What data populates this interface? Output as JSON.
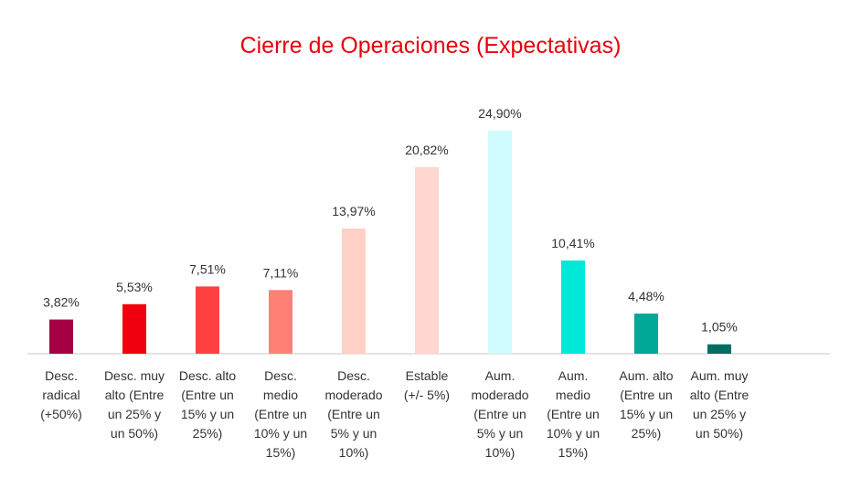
{
  "chart_data": {
    "type": "bar",
    "title": "Cierre de Operaciones (Expectativas)",
    "categories": [
      [
        "Desc.",
        "radical",
        "(+50%)"
      ],
      [
        "Desc. muy",
        "alto (Entre",
        "un 25% y",
        "un 50%)"
      ],
      [
        "Desc. alto",
        "(Entre un",
        "15% y un",
        "25%)"
      ],
      [
        "Desc.",
        "medio",
        "(Entre un",
        "10% y un",
        "15%)"
      ],
      [
        "Desc.",
        "moderado",
        "(Entre un",
        "5% y un",
        "10%)"
      ],
      [
        "Estable",
        "(+/- 5%)"
      ],
      [
        "Aum.",
        "moderado",
        "(Entre un",
        "5% y un",
        "10%)"
      ],
      [
        "Aum.",
        "medio",
        "(Entre un",
        "10% y un",
        "15%)"
      ],
      [
        "Aum. alto",
        "(Entre un",
        "15% y un",
        "25%)"
      ],
      [
        "Aum. muy",
        "alto (Entre",
        "un 25% y",
        "un 50%)"
      ]
    ],
    "values": [
      3.82,
      5.53,
      7.51,
      7.11,
      13.97,
      20.82,
      24.9,
      10.41,
      4.48,
      1.05
    ],
    "data_labels": [
      "3,82%",
      "5,53%",
      "7,51%",
      "7,11%",
      "13,97%",
      "20,82%",
      "24,90%",
      "10,41%",
      "4,48%",
      "1,05%"
    ],
    "colors": [
      "#a50044",
      "#f0000f",
      "#ff4040",
      "#ff8075",
      "#ffd0c6",
      "#ffd6d0",
      "#d0fbff",
      "#00e8d8",
      "#00a898",
      "#006e60"
    ],
    "ylim": [
      0,
      26
    ],
    "grid": false,
    "legend": "none"
  }
}
